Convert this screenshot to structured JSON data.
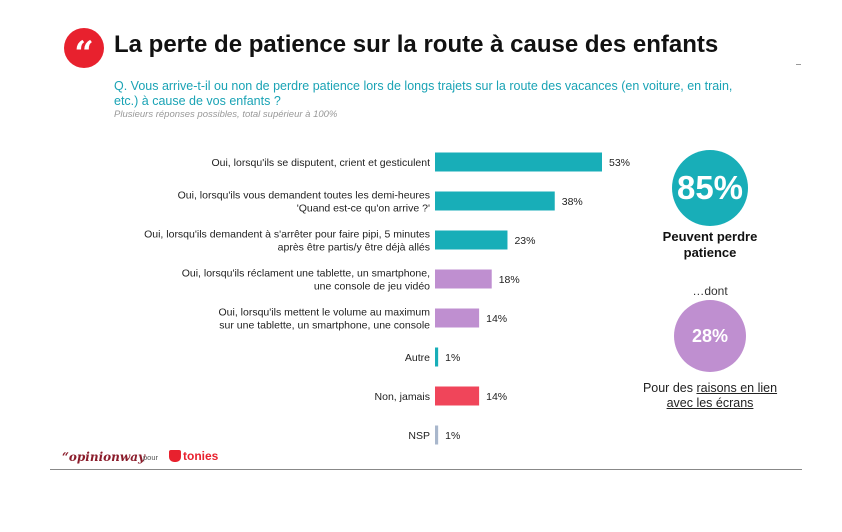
{
  "header": {
    "quote_icon_glyph": "“",
    "title": "La perte de patience sur la route à cause des enfants"
  },
  "question": "Q. Vous arrive-t-il ou non de perdre patience lors de longs trajets sur la route des vacances (en voiture, en train, etc.) à cause de vos enfants ?",
  "note": "Plusieurs réponses possibles, total supérieur à 100%",
  "chart_data": {
    "type": "bar",
    "orientation": "horizontal",
    "categories": [
      [
        "Oui, lorsqu'ils se disputent, crient et gesticulent"
      ],
      [
        "Oui, lorsqu'ils vous demandent toutes les demi-heures",
        "'Quand est-ce qu'on arrive ?'"
      ],
      [
        "Oui, lorsqu'ils demandent à s'arrêter pour faire pipi, 5 minutes",
        "après être partis/y être déjà allés"
      ],
      [
        "Oui, lorsqu'ils réclament une tablette, un smartphone,",
        "une console de jeu vidéo"
      ],
      [
        "Oui, lorsqu'ils mettent le volume au maximum",
        "sur une tablette, un smartphone, une console"
      ],
      [
        "Autre"
      ],
      [
        "Non, jamais"
      ],
      [
        "NSP"
      ]
    ],
    "values": [
      53,
      38,
      23,
      18,
      14,
      1,
      14,
      1
    ],
    "value_labels": [
      "53%",
      "38%",
      "23%",
      "18%",
      "14%",
      "1%",
      "14%",
      "1%"
    ],
    "colors": [
      "#18aeb8",
      "#18aeb8",
      "#18aeb8",
      "#bf8fd0",
      "#bf8fd0",
      "#18aeb8",
      "#f0455a",
      "#a9b7cc"
    ],
    "unit": "%",
    "xlim": [
      0,
      53
    ],
    "grid": false,
    "legend": "none"
  },
  "summary": {
    "total_pct": "85%",
    "total_caption": "Peuvent perdre patience",
    "dont": "…dont",
    "screens_pct": "28%",
    "screens_caption_pre": "Pour des ",
    "screens_caption_link": "raisons en lien avec les écrans"
  },
  "footer": {
    "brand": "“opinionway",
    "pour": "pour",
    "partner": "tonies"
  },
  "colors": {
    "accent_red": "#e8212e",
    "teal": "#18aeb8",
    "purple": "#bf8fd0",
    "pink": "#f0455a",
    "grey_blue": "#a9b7cc"
  }
}
